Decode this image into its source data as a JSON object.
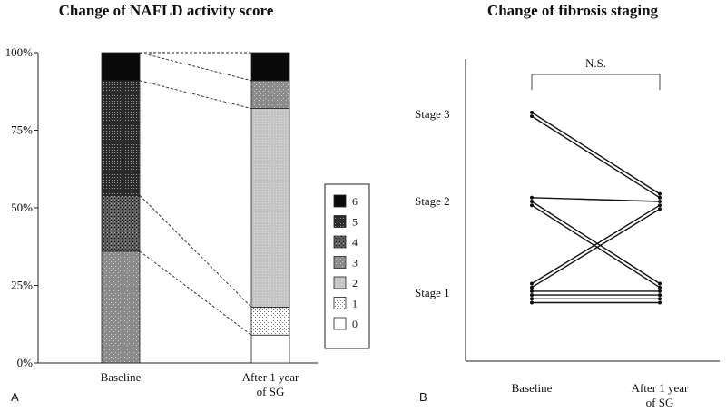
{
  "panel_a_letter": "A",
  "panel_b_letter": "B",
  "chart_data": [
    {
      "type": "bar",
      "stacked": true,
      "title": "Change of NAFLD activity score",
      "categories": [
        "Baseline",
        "After 1 year of SG"
      ],
      "category_lines": [
        [
          "Baseline"
        ],
        [
          "After 1 year",
          "of SG"
        ]
      ],
      "yticks": [
        "0%",
        "25%",
        "50%",
        "75%",
        "100%"
      ],
      "ylim": [
        0,
        100
      ],
      "series": [
        {
          "name": "0",
          "values": [
            0,
            9
          ]
        },
        {
          "name": "1",
          "values": [
            0,
            9
          ]
        },
        {
          "name": "2",
          "values": [
            0,
            64
          ]
        },
        {
          "name": "3",
          "values": [
            36,
            9
          ]
        },
        {
          "name": "4",
          "values": [
            18,
            0
          ]
        },
        {
          "name": "5",
          "values": [
            37,
            0
          ]
        },
        {
          "name": "6",
          "values": [
            9,
            9
          ]
        }
      ],
      "legend": [
        "6",
        "5",
        "4",
        "3",
        "2",
        "1",
        "0"
      ],
      "legend_position": "right",
      "connectors": "dashed lines joining segment boundaries between the two bars"
    },
    {
      "type": "line",
      "title": "Change of fibrosis staging",
      "categories": [
        "Baseline",
        "After 1 year of SG"
      ],
      "category_lines": [
        [
          "Baseline"
        ],
        [
          "After 1 year",
          "of SG"
        ]
      ],
      "ylabels": [
        "Stage 1",
        "Stage 2",
        "Stage 3"
      ],
      "ylim": [
        0,
        4
      ],
      "significance": "N.S.",
      "patients": [
        {
          "baseline": 3,
          "after": 2
        },
        {
          "baseline": 3,
          "after": 2
        },
        {
          "baseline": 2,
          "after": 2
        },
        {
          "baseline": 2,
          "after": 1
        },
        {
          "baseline": 2,
          "after": 1
        },
        {
          "baseline": 1,
          "after": 2
        },
        {
          "baseline": 1,
          "after": 2
        },
        {
          "baseline": 1,
          "after": 1
        },
        {
          "baseline": 1,
          "after": 1
        },
        {
          "baseline": 1,
          "after": 1
        },
        {
          "baseline": 1,
          "after": 1
        }
      ]
    }
  ]
}
